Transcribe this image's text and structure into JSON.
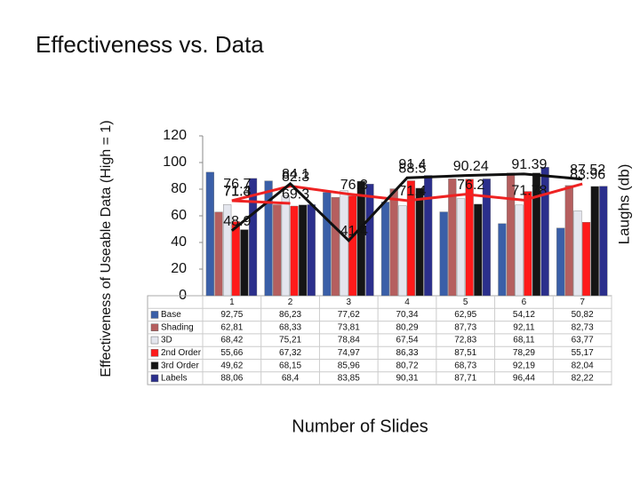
{
  "chart_data": {
    "type": "bar",
    "title": "Effectiveness vs. Data",
    "y_label": "Effectiveness of Useable Data (High = 1)",
    "y2_label": "Laughs (db)",
    "x_label": "Number of Slides",
    "categories": [
      "1",
      "2",
      "3",
      "4",
      "5",
      "6",
      "7"
    ],
    "ylim": [
      0,
      120
    ],
    "yticks": [
      0,
      20,
      40,
      60,
      80,
      100,
      120
    ],
    "series": [
      {
        "name": "Base",
        "color": "#3a5fa8",
        "values": [
          92.75,
          86.23,
          77.62,
          70.34,
          62.95,
          54.12,
          50.82
        ],
        "value_labels": [
          "92,75",
          "86,23",
          "77,62",
          "70,34",
          "62,95",
          "54,12",
          "50,82"
        ]
      },
      {
        "name": "Shading",
        "color": "#b55f5f",
        "values": [
          62.81,
          68.33,
          73.81,
          80.29,
          87.73,
          92.11,
          82.73
        ],
        "value_labels": [
          "62,81",
          "68,33",
          "73,81",
          "80,29",
          "87,73",
          "92,11",
          "82,73"
        ]
      },
      {
        "name": "3D",
        "color": "#e4e6ee",
        "values": [
          68.42,
          75.21,
          78.84,
          67.54,
          72.83,
          68.11,
          63.77
        ],
        "value_labels": [
          "68,42",
          "75,21",
          "78,84",
          "67,54",
          "72,83",
          "68,11",
          "63,77"
        ]
      },
      {
        "name": "2nd Order",
        "color": "#ff1a1a",
        "values": [
          55.66,
          67.32,
          74.97,
          86.33,
          87.51,
          78.29,
          55.17
        ],
        "value_labels": [
          "55,66",
          "67,32",
          "74,97",
          "86,33",
          "87,51",
          "78,29",
          "55,17"
        ]
      },
      {
        "name": "3rd Order",
        "color": "#151515",
        "values": [
          49.62,
          68.15,
          85.96,
          80.72,
          68.73,
          92.19,
          82.04
        ],
        "value_labels": [
          "49,62",
          "68,15",
          "85,96",
          "80,72",
          "68,73",
          "92,19",
          "82,04"
        ]
      },
      {
        "name": "Labels",
        "color": "#2b2f8c",
        "values": [
          88.06,
          68.4,
          83.85,
          90.31,
          87.71,
          96.44,
          82.22
        ],
        "value_labels": [
          "88,06",
          "68,4",
          "83,85",
          "90,31",
          "87,71",
          "96,44",
          "82,22"
        ]
      }
    ],
    "lines": [
      {
        "color": "#ee2222",
        "values": [
          71.4,
          82.3,
          76.3,
          71.4,
          76.2,
          71.78,
          83.96
        ]
      },
      {
        "color": "#111111",
        "values": [
          48.9,
          84.1,
          41.4,
          88.5,
          90.24,
          91.39,
          87.52
        ]
      },
      {
        "color": "#ee2222",
        "values": [
          76.7,
          null,
          null,
          91.4,
          null,
          null,
          null
        ]
      },
      {
        "color": "#ee2222",
        "values": [
          71.3,
          69.3,
          null,
          null,
          null,
          null,
          null
        ]
      }
    ]
  }
}
